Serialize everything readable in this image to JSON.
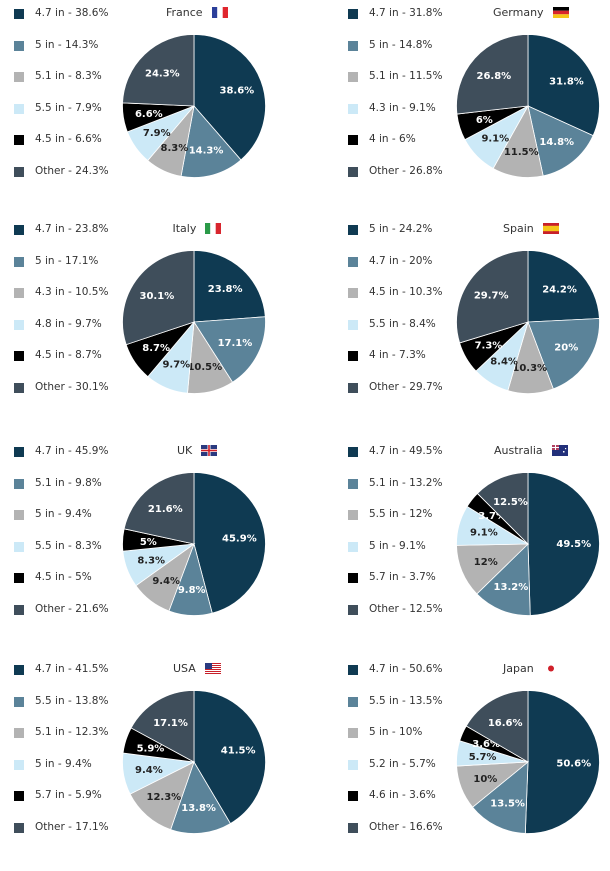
{
  "colors": [
    "#0f3a52",
    "#5b8399",
    "#b3b3b3",
    "#cce9f7",
    "#000000",
    "#3f4e5b"
  ],
  "chart_data": [
    {
      "type": "pie",
      "title": "France",
      "flag_icon": "france-flag-icon",
      "labels": [
        "4.7 in",
        "5 in",
        "5.1 in",
        "5.5 in",
        "4.5 in",
        "Other"
      ],
      "values": [
        38.6,
        14.3,
        8.3,
        7.9,
        6.6,
        24.3
      ],
      "legend": [
        "4.7 in - 38.6%",
        "5 in - 14.3%",
        "5.1 in - 8.3%",
        "5.5 in - 7.9%",
        "4.5 in - 6.6%",
        "Other - 24.3%"
      ],
      "data_labels": [
        "38.6%",
        "14.3%",
        "8.3%",
        "7.9%",
        "6.6%",
        "24.3%"
      ]
    },
    {
      "type": "pie",
      "title": "Germany",
      "flag_icon": "germany-flag-icon",
      "labels": [
        "4.7 in",
        "5 in",
        "5.1 in",
        "4.3 in",
        "4 in",
        "Other"
      ],
      "values": [
        31.8,
        14.8,
        11.5,
        9.1,
        6,
        26.8
      ],
      "legend": [
        "4.7 in - 31.8%",
        "5 in - 14.8%",
        "5.1 in - 11.5%",
        "4.3 in - 9.1%",
        "4 in - 6%",
        "Other - 26.8%"
      ],
      "data_labels": [
        "31.8%",
        "14.8%",
        "11.5%",
        "9.1%",
        "6%",
        "26.8%"
      ]
    },
    {
      "type": "pie",
      "title": "Italy",
      "flag_icon": "italy-flag-icon",
      "labels": [
        "4.7 in",
        "5 in",
        "4.3 in",
        "4.8 in",
        "4.5 in",
        "Other"
      ],
      "values": [
        23.8,
        17.1,
        10.5,
        9.7,
        8.7,
        30.1
      ],
      "legend": [
        "4.7 in - 23.8%",
        "5 in - 17.1%",
        "4.3 in - 10.5%",
        "4.8 in - 9.7%",
        "4.5 in - 8.7%",
        "Other - 30.1%"
      ],
      "data_labels": [
        "23.8%",
        "17.1%",
        "10.5%",
        "9.7%",
        "8.7%",
        "30.1%"
      ]
    },
    {
      "type": "pie",
      "title": "Spain",
      "flag_icon": "spain-flag-icon",
      "labels": [
        "5 in",
        "4.7 in",
        "4.5 in",
        "5.5 in",
        "4 in",
        "Other"
      ],
      "values": [
        24.2,
        20,
        10.3,
        8.4,
        7.3,
        29.7
      ],
      "legend": [
        "5 in - 24.2%",
        "4.7 in - 20%",
        "4.5 in - 10.3%",
        "5.5 in - 8.4%",
        "4 in - 7.3%",
        "Other - 29.7%"
      ],
      "data_labels": [
        "24.2%",
        "20%",
        "10.3%",
        "8.4%",
        "7.3%",
        "29.7%"
      ]
    },
    {
      "type": "pie",
      "title": "UK",
      "flag_icon": "uk-flag-icon",
      "labels": [
        "4.7 in",
        "5.1 in",
        "5 in",
        "5.5 in",
        "4.5 in",
        "Other"
      ],
      "values": [
        45.9,
        9.8,
        9.4,
        8.3,
        5,
        21.6
      ],
      "legend": [
        "4.7 in - 45.9%",
        "5.1 in - 9.8%",
        "5 in - 9.4%",
        "5.5 in - 8.3%",
        "4.5 in - 5%",
        "Other - 21.6%"
      ],
      "data_labels": [
        "45.9%",
        "9.8%",
        "9.4%",
        "8.3%",
        "5%",
        "21.6%"
      ]
    },
    {
      "type": "pie",
      "title": "Australia",
      "flag_icon": "australia-flag-icon",
      "labels": [
        "4.7 in",
        "5.1 in",
        "5.5 in",
        "5 in",
        "5.7 in",
        "Other"
      ],
      "values": [
        49.5,
        13.2,
        12,
        9.1,
        3.7,
        12.5
      ],
      "legend": [
        "4.7 in - 49.5%",
        "5.1 in - 13.2%",
        "5.5 in - 12%",
        "5 in - 9.1%",
        "5.7 in - 3.7%",
        "Other - 12.5%"
      ],
      "data_labels": [
        "49.5%",
        "13.2%",
        "12%",
        "9.1%",
        "3.7%",
        "12.5%"
      ]
    },
    {
      "type": "pie",
      "title": "USA",
      "flag_icon": "usa-flag-icon",
      "labels": [
        "4.7 in",
        "5.5 in",
        "5.1 in",
        "5 in",
        "5.7 in",
        "Other"
      ],
      "values": [
        41.5,
        13.8,
        12.3,
        9.4,
        5.9,
        17.1
      ],
      "legend": [
        "4.7 in - 41.5%",
        "5.5 in - 13.8%",
        "5.1 in - 12.3%",
        "5 in - 9.4%",
        "5.7 in - 5.9%",
        "Other - 17.1%"
      ],
      "data_labels": [
        "41.5%",
        "13.8%",
        "12.3%",
        "9.4%",
        "5.9%",
        "17.1%"
      ]
    },
    {
      "type": "pie",
      "title": "Japan",
      "flag_icon": "japan-flag-icon",
      "labels": [
        "4.7 in",
        "5.5 in",
        "5 in",
        "5.2 in",
        "4.6 in",
        "Other"
      ],
      "values": [
        50.6,
        13.5,
        10,
        5.7,
        3.6,
        16.6
      ],
      "legend": [
        "4.7 in - 50.6%",
        "5.5 in - 13.5%",
        "5 in - 10%",
        "5.2 in - 5.7%",
        "4.6 in - 3.6%",
        "Other - 16.6%"
      ],
      "data_labels": [
        "50.6%",
        "13.5%",
        "10%",
        "5.7%",
        "3.6%",
        "16.6%"
      ]
    }
  ]
}
